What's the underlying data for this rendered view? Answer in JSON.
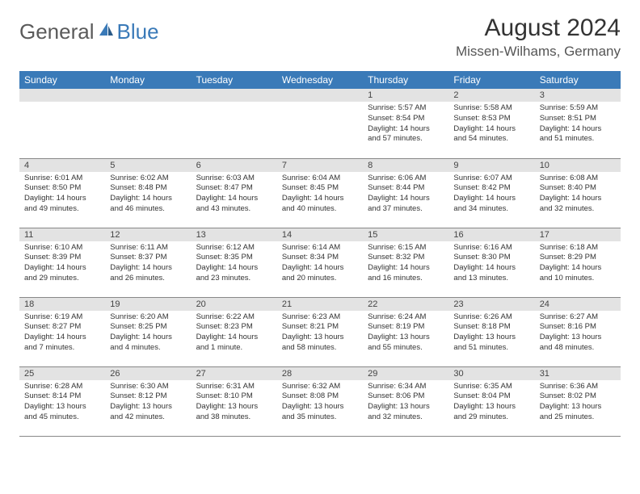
{
  "brand": {
    "part1": "General",
    "part2": "Blue"
  },
  "title": "August 2024",
  "location": "Missen-Wilhams, Germany",
  "colors": {
    "header_bg": "#3a7ab8",
    "header_text": "#ffffff",
    "daynum_bg": "#e3e3e3",
    "border": "#888888",
    "logo_gray": "#5a5a5a",
    "logo_blue": "#3a7ab8"
  },
  "day_names": [
    "Sunday",
    "Monday",
    "Tuesday",
    "Wednesday",
    "Thursday",
    "Friday",
    "Saturday"
  ],
  "weeks": [
    [
      {
        "n": "",
        "sr": "",
        "ss": "",
        "dl": ""
      },
      {
        "n": "",
        "sr": "",
        "ss": "",
        "dl": ""
      },
      {
        "n": "",
        "sr": "",
        "ss": "",
        "dl": ""
      },
      {
        "n": "",
        "sr": "",
        "ss": "",
        "dl": ""
      },
      {
        "n": "1",
        "sr": "Sunrise: 5:57 AM",
        "ss": "Sunset: 8:54 PM",
        "dl": "Daylight: 14 hours and 57 minutes."
      },
      {
        "n": "2",
        "sr": "Sunrise: 5:58 AM",
        "ss": "Sunset: 8:53 PM",
        "dl": "Daylight: 14 hours and 54 minutes."
      },
      {
        "n": "3",
        "sr": "Sunrise: 5:59 AM",
        "ss": "Sunset: 8:51 PM",
        "dl": "Daylight: 14 hours and 51 minutes."
      }
    ],
    [
      {
        "n": "4",
        "sr": "Sunrise: 6:01 AM",
        "ss": "Sunset: 8:50 PM",
        "dl": "Daylight: 14 hours and 49 minutes."
      },
      {
        "n": "5",
        "sr": "Sunrise: 6:02 AM",
        "ss": "Sunset: 8:48 PM",
        "dl": "Daylight: 14 hours and 46 minutes."
      },
      {
        "n": "6",
        "sr": "Sunrise: 6:03 AM",
        "ss": "Sunset: 8:47 PM",
        "dl": "Daylight: 14 hours and 43 minutes."
      },
      {
        "n": "7",
        "sr": "Sunrise: 6:04 AM",
        "ss": "Sunset: 8:45 PM",
        "dl": "Daylight: 14 hours and 40 minutes."
      },
      {
        "n": "8",
        "sr": "Sunrise: 6:06 AM",
        "ss": "Sunset: 8:44 PM",
        "dl": "Daylight: 14 hours and 37 minutes."
      },
      {
        "n": "9",
        "sr": "Sunrise: 6:07 AM",
        "ss": "Sunset: 8:42 PM",
        "dl": "Daylight: 14 hours and 34 minutes."
      },
      {
        "n": "10",
        "sr": "Sunrise: 6:08 AM",
        "ss": "Sunset: 8:40 PM",
        "dl": "Daylight: 14 hours and 32 minutes."
      }
    ],
    [
      {
        "n": "11",
        "sr": "Sunrise: 6:10 AM",
        "ss": "Sunset: 8:39 PM",
        "dl": "Daylight: 14 hours and 29 minutes."
      },
      {
        "n": "12",
        "sr": "Sunrise: 6:11 AM",
        "ss": "Sunset: 8:37 PM",
        "dl": "Daylight: 14 hours and 26 minutes."
      },
      {
        "n": "13",
        "sr": "Sunrise: 6:12 AM",
        "ss": "Sunset: 8:35 PM",
        "dl": "Daylight: 14 hours and 23 minutes."
      },
      {
        "n": "14",
        "sr": "Sunrise: 6:14 AM",
        "ss": "Sunset: 8:34 PM",
        "dl": "Daylight: 14 hours and 20 minutes."
      },
      {
        "n": "15",
        "sr": "Sunrise: 6:15 AM",
        "ss": "Sunset: 8:32 PM",
        "dl": "Daylight: 14 hours and 16 minutes."
      },
      {
        "n": "16",
        "sr": "Sunrise: 6:16 AM",
        "ss": "Sunset: 8:30 PM",
        "dl": "Daylight: 14 hours and 13 minutes."
      },
      {
        "n": "17",
        "sr": "Sunrise: 6:18 AM",
        "ss": "Sunset: 8:29 PM",
        "dl": "Daylight: 14 hours and 10 minutes."
      }
    ],
    [
      {
        "n": "18",
        "sr": "Sunrise: 6:19 AM",
        "ss": "Sunset: 8:27 PM",
        "dl": "Daylight: 14 hours and 7 minutes."
      },
      {
        "n": "19",
        "sr": "Sunrise: 6:20 AM",
        "ss": "Sunset: 8:25 PM",
        "dl": "Daylight: 14 hours and 4 minutes."
      },
      {
        "n": "20",
        "sr": "Sunrise: 6:22 AM",
        "ss": "Sunset: 8:23 PM",
        "dl": "Daylight: 14 hours and 1 minute."
      },
      {
        "n": "21",
        "sr": "Sunrise: 6:23 AM",
        "ss": "Sunset: 8:21 PM",
        "dl": "Daylight: 13 hours and 58 minutes."
      },
      {
        "n": "22",
        "sr": "Sunrise: 6:24 AM",
        "ss": "Sunset: 8:19 PM",
        "dl": "Daylight: 13 hours and 55 minutes."
      },
      {
        "n": "23",
        "sr": "Sunrise: 6:26 AM",
        "ss": "Sunset: 8:18 PM",
        "dl": "Daylight: 13 hours and 51 minutes."
      },
      {
        "n": "24",
        "sr": "Sunrise: 6:27 AM",
        "ss": "Sunset: 8:16 PM",
        "dl": "Daylight: 13 hours and 48 minutes."
      }
    ],
    [
      {
        "n": "25",
        "sr": "Sunrise: 6:28 AM",
        "ss": "Sunset: 8:14 PM",
        "dl": "Daylight: 13 hours and 45 minutes."
      },
      {
        "n": "26",
        "sr": "Sunrise: 6:30 AM",
        "ss": "Sunset: 8:12 PM",
        "dl": "Daylight: 13 hours and 42 minutes."
      },
      {
        "n": "27",
        "sr": "Sunrise: 6:31 AM",
        "ss": "Sunset: 8:10 PM",
        "dl": "Daylight: 13 hours and 38 minutes."
      },
      {
        "n": "28",
        "sr": "Sunrise: 6:32 AM",
        "ss": "Sunset: 8:08 PM",
        "dl": "Daylight: 13 hours and 35 minutes."
      },
      {
        "n": "29",
        "sr": "Sunrise: 6:34 AM",
        "ss": "Sunset: 8:06 PM",
        "dl": "Daylight: 13 hours and 32 minutes."
      },
      {
        "n": "30",
        "sr": "Sunrise: 6:35 AM",
        "ss": "Sunset: 8:04 PM",
        "dl": "Daylight: 13 hours and 29 minutes."
      },
      {
        "n": "31",
        "sr": "Sunrise: 6:36 AM",
        "ss": "Sunset: 8:02 PM",
        "dl": "Daylight: 13 hours and 25 minutes."
      }
    ]
  ]
}
